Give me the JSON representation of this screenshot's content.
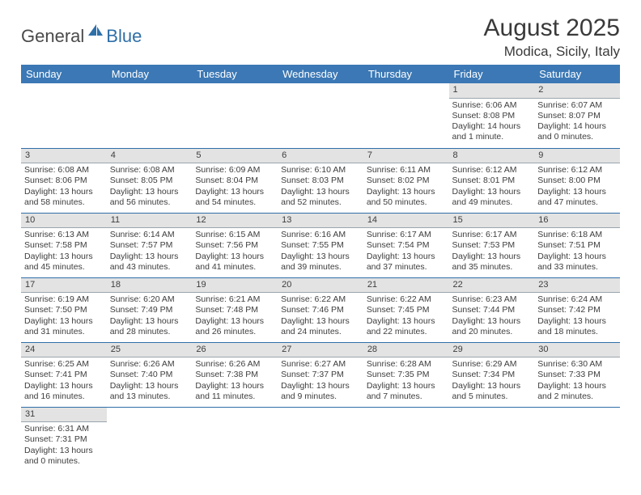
{
  "logo": {
    "part1": "General",
    "part2": "Blue"
  },
  "title": "August 2025",
  "location": "Modica, Sicily, Italy",
  "colors": {
    "header_bg": "#3b78b5",
    "header_text": "#ffffff",
    "daynum_bg": "#e3e3e3",
    "row_border": "#2f6fa8",
    "text": "#3d3d3d",
    "logo_blue": "#2f6fa8"
  },
  "weekdays": [
    "Sunday",
    "Monday",
    "Tuesday",
    "Wednesday",
    "Thursday",
    "Friday",
    "Saturday"
  ],
  "weeks": [
    [
      null,
      null,
      null,
      null,
      null,
      {
        "n": "1",
        "sr": "Sunrise: 6:06 AM",
        "ss": "Sunset: 8:08 PM",
        "dl": "Daylight: 14 hours and 1 minute."
      },
      {
        "n": "2",
        "sr": "Sunrise: 6:07 AM",
        "ss": "Sunset: 8:07 PM",
        "dl": "Daylight: 14 hours and 0 minutes."
      }
    ],
    [
      {
        "n": "3",
        "sr": "Sunrise: 6:08 AM",
        "ss": "Sunset: 8:06 PM",
        "dl": "Daylight: 13 hours and 58 minutes."
      },
      {
        "n": "4",
        "sr": "Sunrise: 6:08 AM",
        "ss": "Sunset: 8:05 PM",
        "dl": "Daylight: 13 hours and 56 minutes."
      },
      {
        "n": "5",
        "sr": "Sunrise: 6:09 AM",
        "ss": "Sunset: 8:04 PM",
        "dl": "Daylight: 13 hours and 54 minutes."
      },
      {
        "n": "6",
        "sr": "Sunrise: 6:10 AM",
        "ss": "Sunset: 8:03 PM",
        "dl": "Daylight: 13 hours and 52 minutes."
      },
      {
        "n": "7",
        "sr": "Sunrise: 6:11 AM",
        "ss": "Sunset: 8:02 PM",
        "dl": "Daylight: 13 hours and 50 minutes."
      },
      {
        "n": "8",
        "sr": "Sunrise: 6:12 AM",
        "ss": "Sunset: 8:01 PM",
        "dl": "Daylight: 13 hours and 49 minutes."
      },
      {
        "n": "9",
        "sr": "Sunrise: 6:12 AM",
        "ss": "Sunset: 8:00 PM",
        "dl": "Daylight: 13 hours and 47 minutes."
      }
    ],
    [
      {
        "n": "10",
        "sr": "Sunrise: 6:13 AM",
        "ss": "Sunset: 7:58 PM",
        "dl": "Daylight: 13 hours and 45 minutes."
      },
      {
        "n": "11",
        "sr": "Sunrise: 6:14 AM",
        "ss": "Sunset: 7:57 PM",
        "dl": "Daylight: 13 hours and 43 minutes."
      },
      {
        "n": "12",
        "sr": "Sunrise: 6:15 AM",
        "ss": "Sunset: 7:56 PM",
        "dl": "Daylight: 13 hours and 41 minutes."
      },
      {
        "n": "13",
        "sr": "Sunrise: 6:16 AM",
        "ss": "Sunset: 7:55 PM",
        "dl": "Daylight: 13 hours and 39 minutes."
      },
      {
        "n": "14",
        "sr": "Sunrise: 6:17 AM",
        "ss": "Sunset: 7:54 PM",
        "dl": "Daylight: 13 hours and 37 minutes."
      },
      {
        "n": "15",
        "sr": "Sunrise: 6:17 AM",
        "ss": "Sunset: 7:53 PM",
        "dl": "Daylight: 13 hours and 35 minutes."
      },
      {
        "n": "16",
        "sr": "Sunrise: 6:18 AM",
        "ss": "Sunset: 7:51 PM",
        "dl": "Daylight: 13 hours and 33 minutes."
      }
    ],
    [
      {
        "n": "17",
        "sr": "Sunrise: 6:19 AM",
        "ss": "Sunset: 7:50 PM",
        "dl": "Daylight: 13 hours and 31 minutes."
      },
      {
        "n": "18",
        "sr": "Sunrise: 6:20 AM",
        "ss": "Sunset: 7:49 PM",
        "dl": "Daylight: 13 hours and 28 minutes."
      },
      {
        "n": "19",
        "sr": "Sunrise: 6:21 AM",
        "ss": "Sunset: 7:48 PM",
        "dl": "Daylight: 13 hours and 26 minutes."
      },
      {
        "n": "20",
        "sr": "Sunrise: 6:22 AM",
        "ss": "Sunset: 7:46 PM",
        "dl": "Daylight: 13 hours and 24 minutes."
      },
      {
        "n": "21",
        "sr": "Sunrise: 6:22 AM",
        "ss": "Sunset: 7:45 PM",
        "dl": "Daylight: 13 hours and 22 minutes."
      },
      {
        "n": "22",
        "sr": "Sunrise: 6:23 AM",
        "ss": "Sunset: 7:44 PM",
        "dl": "Daylight: 13 hours and 20 minutes."
      },
      {
        "n": "23",
        "sr": "Sunrise: 6:24 AM",
        "ss": "Sunset: 7:42 PM",
        "dl": "Daylight: 13 hours and 18 minutes."
      }
    ],
    [
      {
        "n": "24",
        "sr": "Sunrise: 6:25 AM",
        "ss": "Sunset: 7:41 PM",
        "dl": "Daylight: 13 hours and 16 minutes."
      },
      {
        "n": "25",
        "sr": "Sunrise: 6:26 AM",
        "ss": "Sunset: 7:40 PM",
        "dl": "Daylight: 13 hours and 13 minutes."
      },
      {
        "n": "26",
        "sr": "Sunrise: 6:26 AM",
        "ss": "Sunset: 7:38 PM",
        "dl": "Daylight: 13 hours and 11 minutes."
      },
      {
        "n": "27",
        "sr": "Sunrise: 6:27 AM",
        "ss": "Sunset: 7:37 PM",
        "dl": "Daylight: 13 hours and 9 minutes."
      },
      {
        "n": "28",
        "sr": "Sunrise: 6:28 AM",
        "ss": "Sunset: 7:35 PM",
        "dl": "Daylight: 13 hours and 7 minutes."
      },
      {
        "n": "29",
        "sr": "Sunrise: 6:29 AM",
        "ss": "Sunset: 7:34 PM",
        "dl": "Daylight: 13 hours and 5 minutes."
      },
      {
        "n": "30",
        "sr": "Sunrise: 6:30 AM",
        "ss": "Sunset: 7:33 PM",
        "dl": "Daylight: 13 hours and 2 minutes."
      }
    ],
    [
      {
        "n": "31",
        "sr": "Sunrise: 6:31 AM",
        "ss": "Sunset: 7:31 PM",
        "dl": "Daylight: 13 hours and 0 minutes."
      },
      null,
      null,
      null,
      null,
      null,
      null
    ]
  ]
}
